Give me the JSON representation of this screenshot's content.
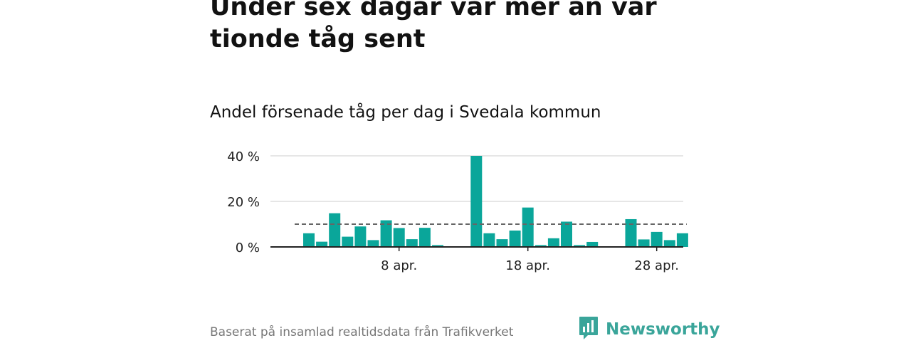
{
  "headline": "Under sex dagar var mer än var tionde tåg sent",
  "subtitle": "Andel försenade tåg per dag i Svedala kommun",
  "footer": {
    "source": "Baserat på insamlad realtidsdata från Trafikverket",
    "brand": "Newsworthy",
    "brand_icon": "bar-chart-speech-bubble-icon",
    "brand_color": "#3aa59a"
  },
  "chart_data": {
    "type": "bar",
    "x": [
      "2024-04-01",
      "2024-04-02",
      "2024-04-03",
      "2024-04-04",
      "2024-04-05",
      "2024-04-06",
      "2024-04-07",
      "2024-04-08",
      "2024-04-09",
      "2024-04-10",
      "2024-04-11",
      "2024-04-12",
      "2024-04-13",
      "2024-04-14",
      "2024-04-15",
      "2024-04-16",
      "2024-04-17",
      "2024-04-18",
      "2024-04-19",
      "2024-04-20",
      "2024-04-21",
      "2024-04-22",
      "2024-04-23",
      "2024-04-24",
      "2024-04-25",
      "2024-04-26",
      "2024-04-27",
      "2024-04-28",
      "2024-04-29",
      "2024-04-30"
    ],
    "values": [
      6,
      2.3,
      14.8,
      4.5,
      9,
      3,
      11.7,
      8.3,
      3.4,
      8.4,
      0.8,
      null,
      null,
      40,
      6,
      3.4,
      7.2,
      17.3,
      0.8,
      3.8,
      11.1,
      0.8,
      2.2,
      null,
      null,
      12.2,
      3.3,
      6.6,
      3,
      6
    ],
    "x_ticks": [
      "8 apr.",
      "18 apr.",
      "28 apr."
    ],
    "y_ticks": [
      "0 %",
      "20 %",
      "40 %"
    ],
    "ylim": [
      0,
      40
    ],
    "reference_line": 10,
    "grid": true,
    "bar_color": "#0aa69a",
    "reference_line_color": "#666666"
  }
}
